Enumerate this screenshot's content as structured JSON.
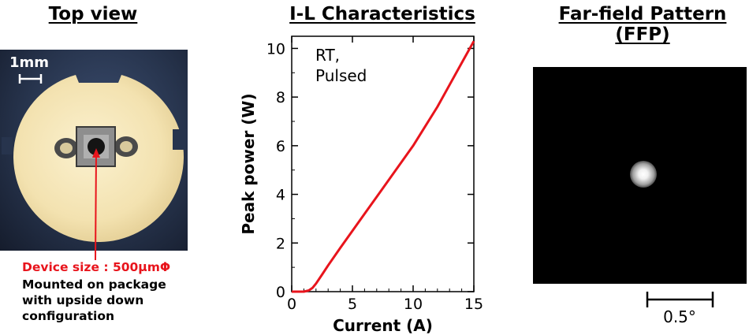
{
  "panels": {
    "top_view": {
      "title": "Top view",
      "scale_label": "1mm",
      "caption_device_size": "Device size : 500μmΦ",
      "caption_line1": "Mounted on package",
      "caption_line2": "with upside down",
      "caption_line3": "configuration"
    },
    "il": {
      "title": "I-L Characteristics",
      "annotation_line1": "RT,",
      "annotation_line2": "Pulsed"
    },
    "ffp": {
      "title_line1": "Far-field Pattern",
      "title_line2": "(FFP)",
      "scale_label": "0.5°"
    }
  },
  "colors": {
    "curve": "#e8141c",
    "device_size_text": "#e8141c",
    "ffp_background": "#000000"
  },
  "chart_data": {
    "type": "line",
    "xlabel": "Current (A)",
    "ylabel": "Peak power (W)",
    "xlim": [
      0,
      15
    ],
    "ylim": [
      0,
      10.5
    ],
    "xticks": [
      0,
      5,
      10,
      15
    ],
    "yticks": [
      0,
      2,
      4,
      6,
      8,
      10
    ],
    "grid": false,
    "series": [
      {
        "x": [
          0,
          1.0,
          1.4,
          1.7,
          2.0,
          2.5,
          3.0,
          4.0,
          5.0,
          6.0,
          7.0,
          8.0,
          9.0,
          10.0,
          11.0,
          12.0,
          13.0,
          14.0,
          15.0
        ],
        "y": [
          0,
          0.0,
          0.05,
          0.15,
          0.33,
          0.7,
          1.08,
          1.8,
          2.5,
          3.2,
          3.9,
          4.6,
          5.3,
          6.0,
          6.8,
          7.6,
          8.5,
          9.4,
          10.3
        ]
      }
    ]
  }
}
